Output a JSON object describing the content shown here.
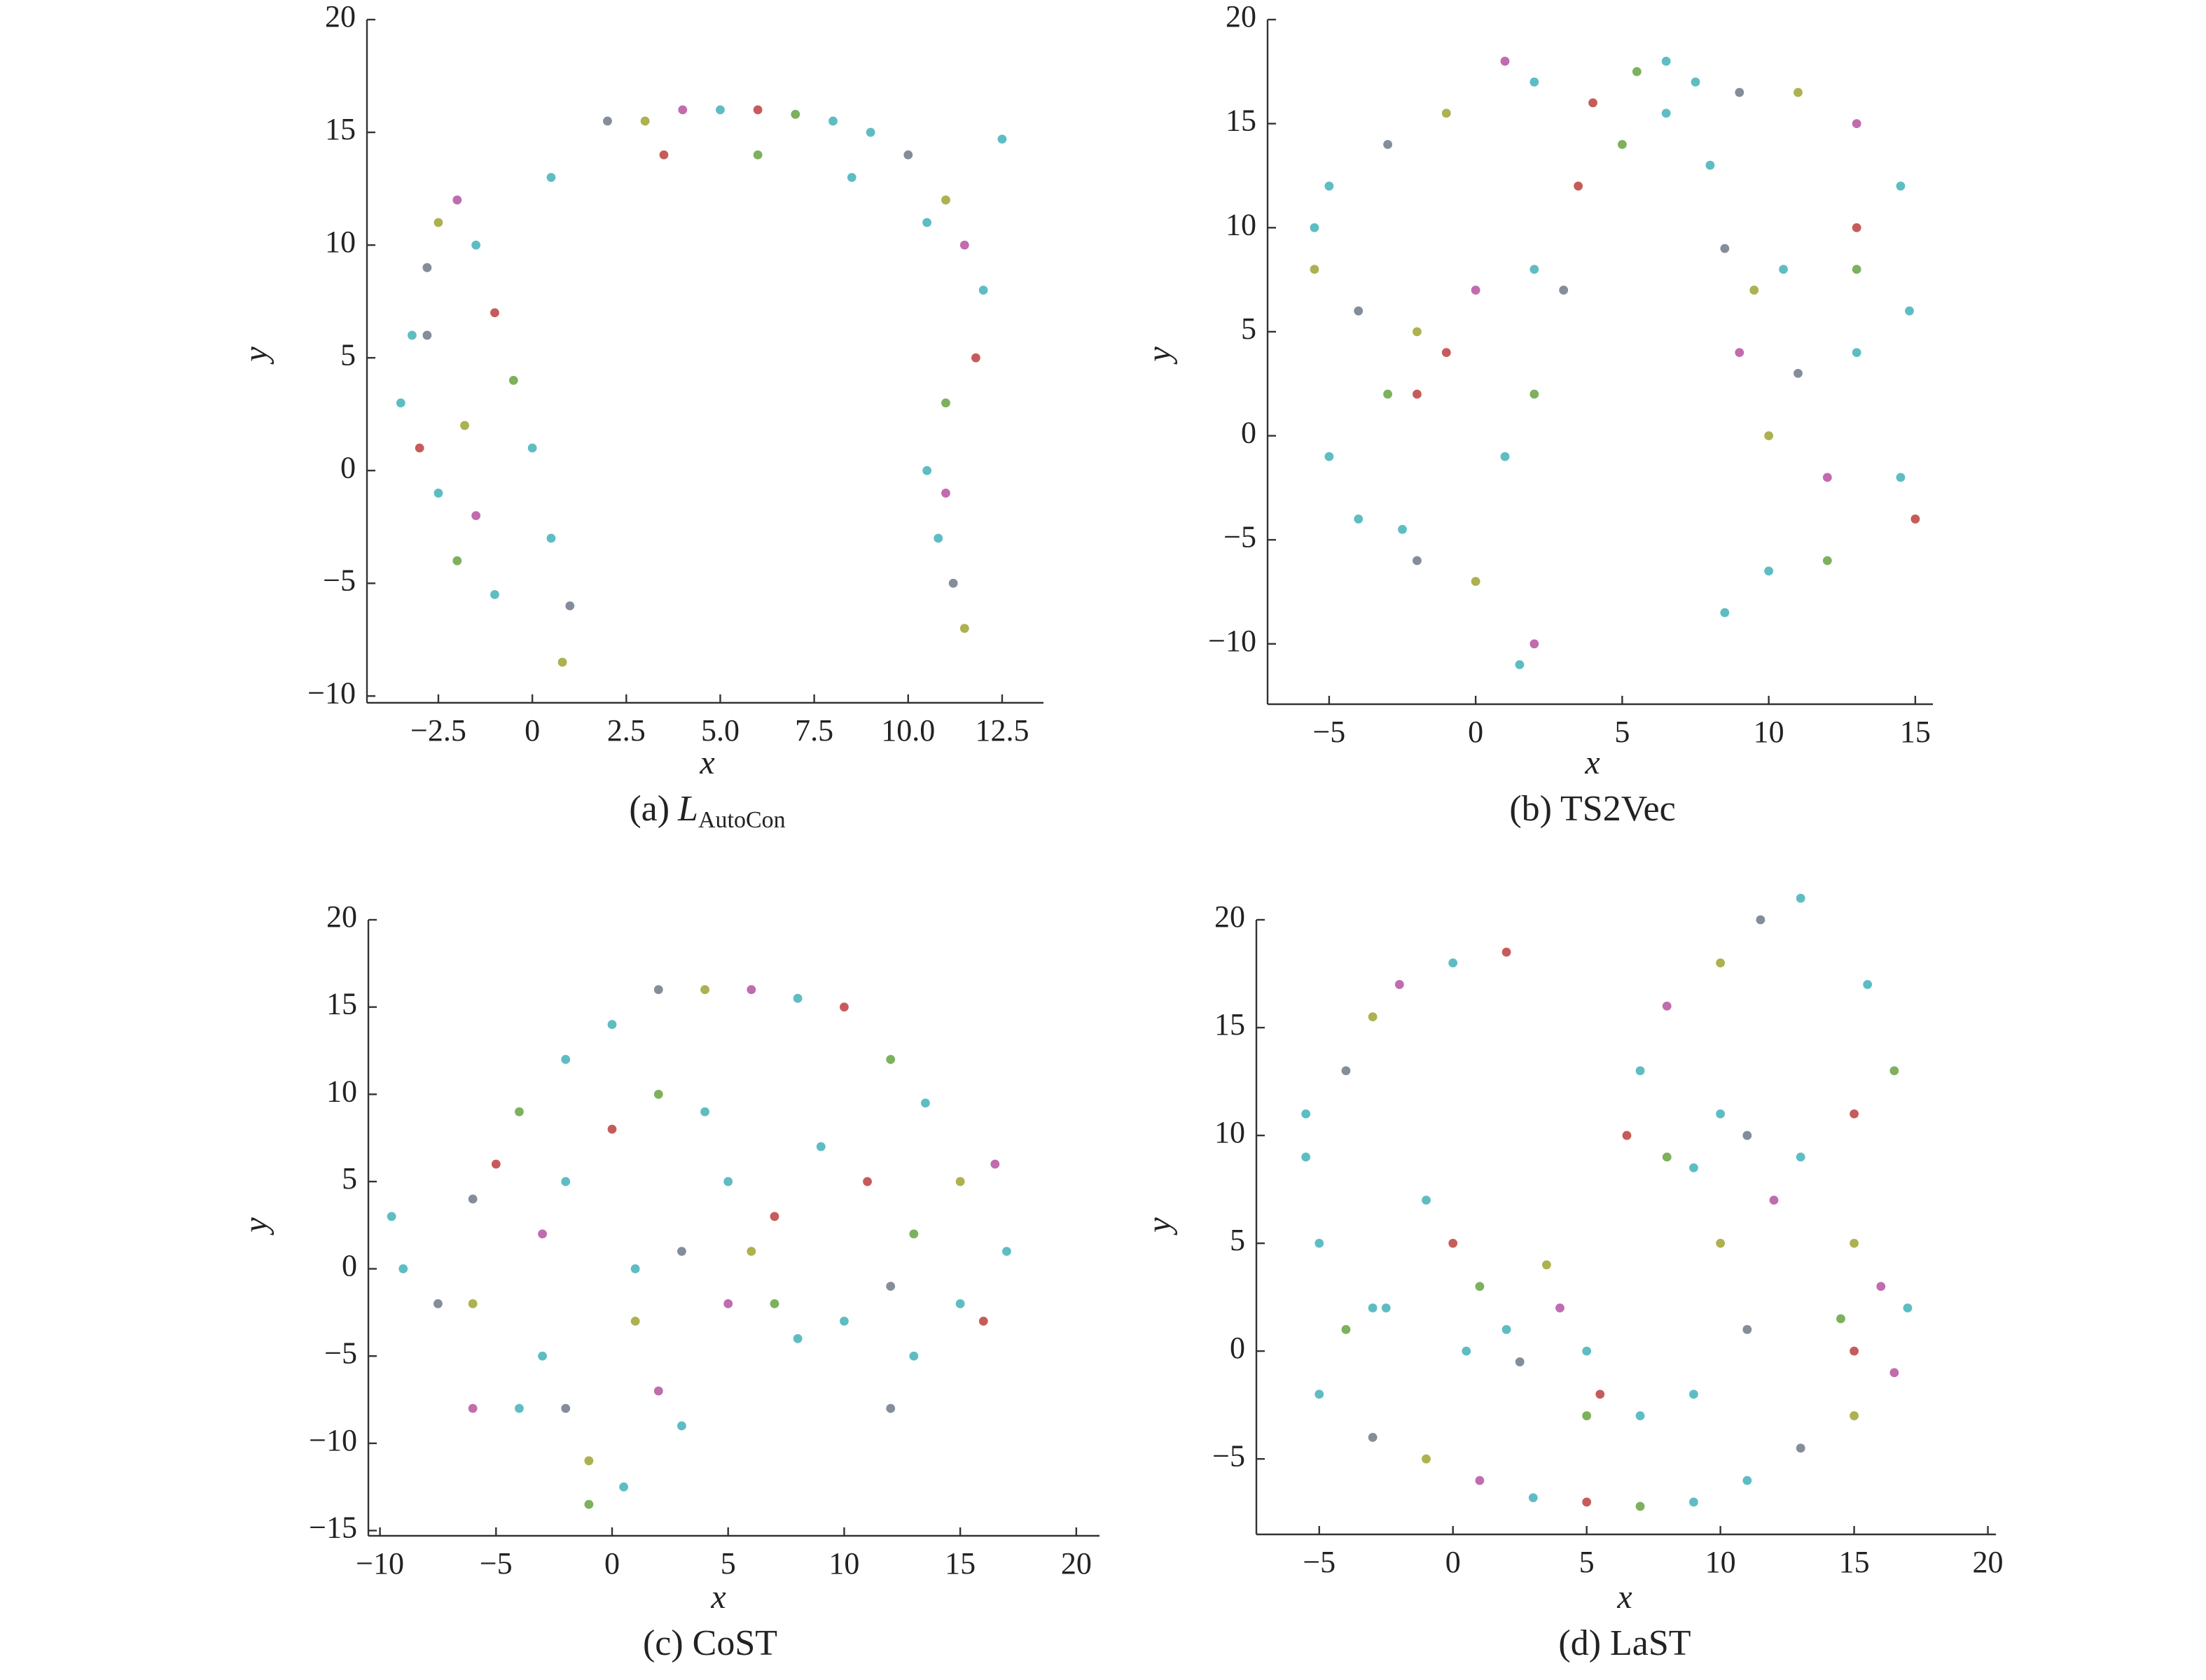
{
  "chart_data": [
    {
      "type": "scatter",
      "caption": "(a)",
      "caption_symbol": "L",
      "caption_subscript": "AutoCon",
      "xlabel": "x",
      "ylabel": "y",
      "xlim": [
        -4.4,
        13.6
      ],
      "ylim": [
        -10.3,
        20
      ],
      "xticks": [
        {
          "value": -2.5,
          "label": "−2.5"
        },
        0,
        {
          "value": 2.5,
          "label": "2.5"
        },
        {
          "value": 5,
          "label": "5.0"
        },
        {
          "value": 7.5,
          "label": "7.5"
        },
        {
          "value": 10,
          "label": "10.0"
        },
        {
          "value": 12.5,
          "label": "12.5"
        }
      ],
      "yticks": [
        {
          "value": -10,
          "label": "−10"
        },
        {
          "value": -5,
          "label": "−5"
        },
        0,
        5,
        10,
        15,
        20
      ],
      "colors": [
        "#4db6bd",
        "#4db6bd",
        "#77818f",
        "#a4a83c",
        "#b95ca6",
        "#4db6bd",
        "#c04a48",
        "#6fa84b"
      ],
      "x": [
        -3.5,
        -3.2,
        -2.8,
        -2.5,
        -2,
        -1.5,
        -1,
        -0.5,
        0,
        0.5,
        1,
        0.8,
        -1.5,
        -2.5,
        -3,
        -2,
        -1,
        0.5,
        2,
        3,
        4,
        5,
        6,
        7,
        8,
        9,
        10,
        11,
        11.5,
        12,
        11.8,
        11,
        10.5,
        10.8,
        11.2,
        11.5,
        11,
        12.5,
        3.5,
        6,
        8.5,
        10.5,
        -2.8,
        -1.8
      ],
      "y": [
        3,
        6,
        9,
        11,
        12,
        10,
        7,
        4,
        1,
        -3,
        -6,
        -8.5,
        -2,
        -1,
        1,
        -4,
        -5.5,
        13,
        15.5,
        15.5,
        16,
        16,
        16,
        15.8,
        15.5,
        15,
        14,
        12,
        10,
        8,
        5,
        3,
        0,
        -3,
        -5,
        -7,
        -1,
        14.7,
        14,
        14,
        13,
        11,
        6,
        2
      ]
    },
    {
      "type": "scatter",
      "caption": "(b) TS2Vec",
      "xlabel": "x",
      "ylabel": "y",
      "xlim": [
        -7.1,
        15.6
      ],
      "ylim": [
        -12.9,
        20
      ],
      "xticks": [
        {
          "value": -5,
          "label": "−5"
        },
        0,
        5,
        10,
        15
      ],
      "yticks": [
        {
          "value": -10,
          "label": "−10"
        },
        {
          "value": -5,
          "label": "−5"
        },
        0,
        5,
        10,
        15,
        20
      ],
      "colors": [
        "#4db6bd",
        "#4db6bd",
        "#77818f",
        "#a4a83c",
        "#b95ca6",
        "#4db6bd",
        "#c04a48",
        "#6fa84b"
      ],
      "x": [
        -5.5,
        -5,
        -3,
        -1,
        1,
        2,
        4,
        5.5,
        6.5,
        7.5,
        9,
        11,
        13,
        14.5,
        13,
        13,
        14.8,
        13,
        11,
        10,
        12,
        14.5,
        15,
        12,
        10,
        8.5,
        -4,
        -2,
        0,
        2,
        3.5,
        5,
        6.5,
        8,
        8.5,
        9.5,
        9,
        10.5,
        -1,
        -3,
        -5,
        -4,
        -2,
        0,
        2,
        1.5,
        -2,
        2,
        1,
        -2.5,
        3,
        -5.5
      ],
      "y": [
        10,
        12,
        14,
        15.5,
        18,
        17,
        16,
        17.5,
        18,
        17,
        16.5,
        16.5,
        15,
        12,
        10,
        8,
        6,
        4,
        3,
        0,
        -2,
        -2,
        -4,
        -6,
        -6.5,
        -8.5,
        6,
        5,
        7,
        8,
        12,
        14,
        15.5,
        13,
        9,
        7,
        4,
        8,
        4,
        2,
        -1,
        -4,
        -6,
        -7,
        -10,
        -11,
        2,
        2,
        -1,
        -4.5,
        7,
        8
      ]
    },
    {
      "type": "scatter",
      "caption": "(c) CoST",
      "xlabel": "x",
      "ylabel": "y",
      "xlim": [
        -10.5,
        21
      ],
      "ylim": [
        -15.3,
        20
      ],
      "xticks": [
        {
          "value": -10,
          "label": "−10"
        },
        {
          "value": -5,
          "label": "−5"
        },
        0,
        5,
        10,
        15,
        20
      ],
      "yticks": [
        {
          "value": -15,
          "label": "−15"
        },
        {
          "value": -10,
          "label": "−10"
        },
        {
          "value": -5,
          "label": "−5"
        },
        0,
        5,
        10,
        15,
        20
      ],
      "colors": [
        "#4db6bd",
        "#4db6bd",
        "#77818f",
        "#a4a83c",
        "#b95ca6",
        "#4db6bd",
        "#c04a48",
        "#6fa84b"
      ],
      "x": [
        -9.5,
        -9,
        -6,
        -6,
        -6,
        -4,
        -5,
        -4,
        -2,
        0,
        2,
        4,
        6,
        8,
        10,
        12,
        13.5,
        -3,
        -2,
        -1,
        -3,
        -2,
        0,
        2,
        4,
        5,
        3,
        1,
        2,
        3,
        7,
        7,
        8,
        10,
        12,
        6,
        5,
        9,
        11,
        13,
        15,
        13,
        12,
        15,
        16.5,
        17,
        16,
        -1,
        0.5,
        1,
        -7.5
      ],
      "y": [
        3,
        0,
        4,
        -2,
        -8,
        -8,
        6,
        9,
        12,
        14,
        16,
        16,
        16,
        15.5,
        15,
        12,
        9.5,
        -5,
        -8,
        -11,
        2,
        5,
        8,
        10,
        9,
        5,
        1,
        -3,
        -7,
        -9,
        3,
        -2,
        -4,
        -3,
        -1,
        1,
        -2,
        7,
        5,
        2,
        -2,
        -5,
        -8,
        5,
        6,
        1,
        -3,
        -13.5,
        -12.5,
        0,
        -2
      ]
    },
    {
      "type": "scatter",
      "caption": "(d) LaST",
      "xlabel": "x",
      "ylabel": "y",
      "xlim": [
        -7.35,
        20.3
      ],
      "ylim": [
        -8.5,
        20
      ],
      "xticks": [
        {
          "value": -5,
          "label": "−5"
        },
        0,
        5,
        10,
        15,
        20
      ],
      "yticks": [
        {
          "value": -5,
          "label": "−5"
        },
        0,
        5,
        10,
        15,
        20
      ],
      "colors": [
        "#4db6bd",
        "#4db6bd",
        "#77818f",
        "#a4a83c",
        "#b95ca6",
        "#4db6bd",
        "#c04a48",
        "#6fa84b"
      ],
      "x": [
        -5,
        -5.5,
        -4,
        -3,
        -2,
        0,
        2,
        -4,
        -3,
        -5,
        -3,
        -1,
        1,
        3,
        5,
        7,
        9,
        11,
        13,
        15,
        16.5,
        -1,
        0,
        1,
        0.5,
        2,
        2.5,
        3.5,
        4,
        5,
        5.5,
        5,
        7,
        9,
        11,
        10,
        12,
        13,
        15,
        16.5,
        15.5,
        13,
        11.5,
        10,
        8,
        7,
        6.5,
        8,
        9,
        10,
        11,
        15,
        16,
        17,
        15,
        14.5,
        -5.5,
        -2.5
      ],
      "y": [
        5,
        9,
        13,
        15.5,
        17,
        18,
        18.5,
        1,
        2,
        -2,
        -4,
        -5,
        -6,
        -6.8,
        -7,
        -7.2,
        -7,
        -6,
        -4.5,
        -3,
        -1,
        7,
        5,
        3,
        0,
        1,
        -0.5,
        4,
        2,
        0,
        -2,
        -3,
        -3,
        -2,
        1,
        5,
        7,
        9,
        11,
        13,
        17,
        21,
        20,
        18,
        16,
        13,
        10,
        9,
        8.5,
        11,
        10,
        5,
        3,
        2,
        0,
        1.5,
        11,
        2
      ]
    }
  ]
}
